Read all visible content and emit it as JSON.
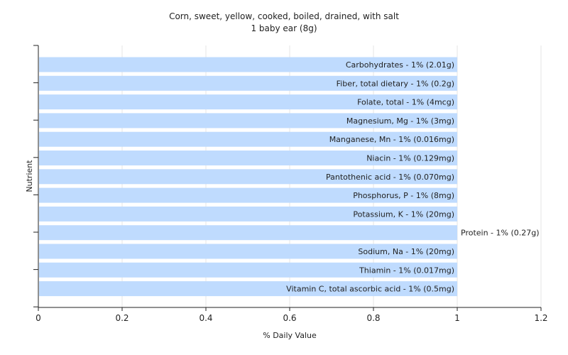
{
  "chart_data": {
    "type": "bar",
    "orientation": "horizontal",
    "title": "Corn, sweet, yellow, cooked, boiled, drained, with salt",
    "subtitle": "1 baby ear (8g)",
    "xlabel": "% Daily Value",
    "ylabel": "Nutrient",
    "xlim": [
      0,
      1.2
    ],
    "xticks": [
      0,
      0.2,
      0.4,
      0.6,
      0.8,
      1,
      1.2
    ],
    "xtick_labels": [
      "0",
      "0.2",
      "0.4",
      "0.6",
      "0.8",
      "1",
      "1.2"
    ],
    "grid": true,
    "bar_color": "#bfdbfe",
    "categories": [
      "Carbohydrates",
      "Fiber, total dietary",
      "Folate, total",
      "Magnesium, Mg",
      "Manganese, Mn",
      "Niacin",
      "Pantothenic acid",
      "Phosphorus, P",
      "Potassium, K",
      "Protein",
      "Sodium, Na",
      "Thiamin",
      "Vitamin C, total ascorbic acid"
    ],
    "values": [
      1,
      1,
      1,
      1,
      1,
      1,
      1,
      1,
      1,
      1,
      1,
      1,
      1
    ],
    "labels": [
      "Carbohydrates - 1% (2.01g)",
      "Fiber, total dietary - 1% (0.2g)",
      "Folate, total - 1% (4mcg)",
      "Magnesium, Mg - 1% (3mg)",
      "Manganese, Mn - 1% (0.016mg)",
      "Niacin - 1% (0.129mg)",
      "Pantothenic acid - 1% (0.070mg)",
      "Phosphorus, P - 1% (8mg)",
      "Potassium, K - 1% (20mg)",
      "Protein - 1% (0.27g)",
      "Sodium, Na - 1% (20mg)",
      "Thiamin - 1% (0.017mg)",
      "Vitamin C, total ascorbic acid - 1% (0.5mg)"
    ],
    "label_outside": [
      false,
      false,
      false,
      false,
      false,
      false,
      false,
      false,
      false,
      true,
      false,
      false,
      false
    ]
  }
}
